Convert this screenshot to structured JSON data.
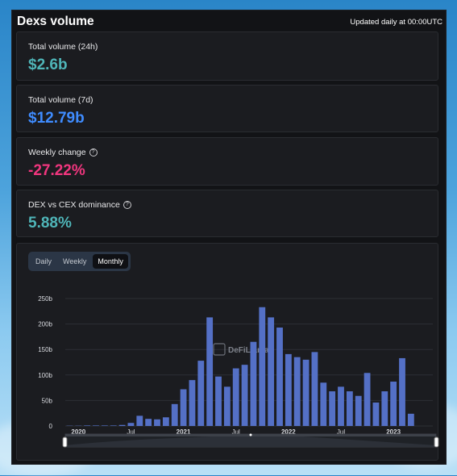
{
  "header": {
    "title": "Dexs volume",
    "updated": "Updated daily at 00:00UTC"
  },
  "cards": [
    {
      "label": "Total volume (24h)",
      "value": "$2.6b",
      "color": "#4fb5b8",
      "help": false
    },
    {
      "label": "Total volume (7d)",
      "value": "$12.79b",
      "color": "#3f8cff",
      "help": false
    },
    {
      "label": "Weekly change",
      "value": "-27.22%",
      "color": "#f0367e",
      "help": true
    },
    {
      "label": "DEX vs CEX dominance",
      "value": "5.88%",
      "color": "#4fb5b8",
      "help": true
    }
  ],
  "toggle": {
    "options": [
      "Daily",
      "Weekly",
      "Monthly"
    ],
    "selected": "Monthly"
  },
  "watermark": "DeFiLlama",
  "chart_data": {
    "type": "bar",
    "bar_color": "#5470c6",
    "ylim": [
      0,
      250
    ],
    "yticks": [
      "0",
      "50b",
      "100b",
      "150b",
      "200b",
      "250b"
    ],
    "xticks": [
      "2020",
      "Jul",
      "2021",
      "Jul",
      "2022",
      "Jul",
      "2023"
    ],
    "categories": [
      "2019-12",
      "2020-01",
      "2020-02",
      "2020-03",
      "2020-04",
      "2020-05",
      "2020-06",
      "2020-07",
      "2020-08",
      "2020-09",
      "2020-10",
      "2020-11",
      "2020-12",
      "2021-01",
      "2021-02",
      "2021-03",
      "2021-04",
      "2021-05",
      "2021-06",
      "2021-07",
      "2021-08",
      "2021-09",
      "2021-10",
      "2021-11",
      "2021-12",
      "2022-01",
      "2022-02",
      "2022-03",
      "2022-04",
      "2022-05",
      "2022-06",
      "2022-07",
      "2022-08",
      "2022-09",
      "2022-10",
      "2022-11",
      "2022-12",
      "2023-01",
      "2023-02",
      "2023-03",
      "2023-04",
      "2023-05"
    ],
    "values": [
      0.5,
      0.5,
      1,
      1,
      1,
      1,
      2,
      6,
      20,
      14,
      13,
      17,
      43,
      72,
      90,
      128,
      213,
      97,
      77,
      113,
      120,
      165,
      233,
      213,
      193,
      141,
      135,
      130,
      145,
      85,
      68,
      77,
      68,
      59,
      104,
      46,
      68,
      87,
      133,
      24,
      0,
      0
    ]
  }
}
